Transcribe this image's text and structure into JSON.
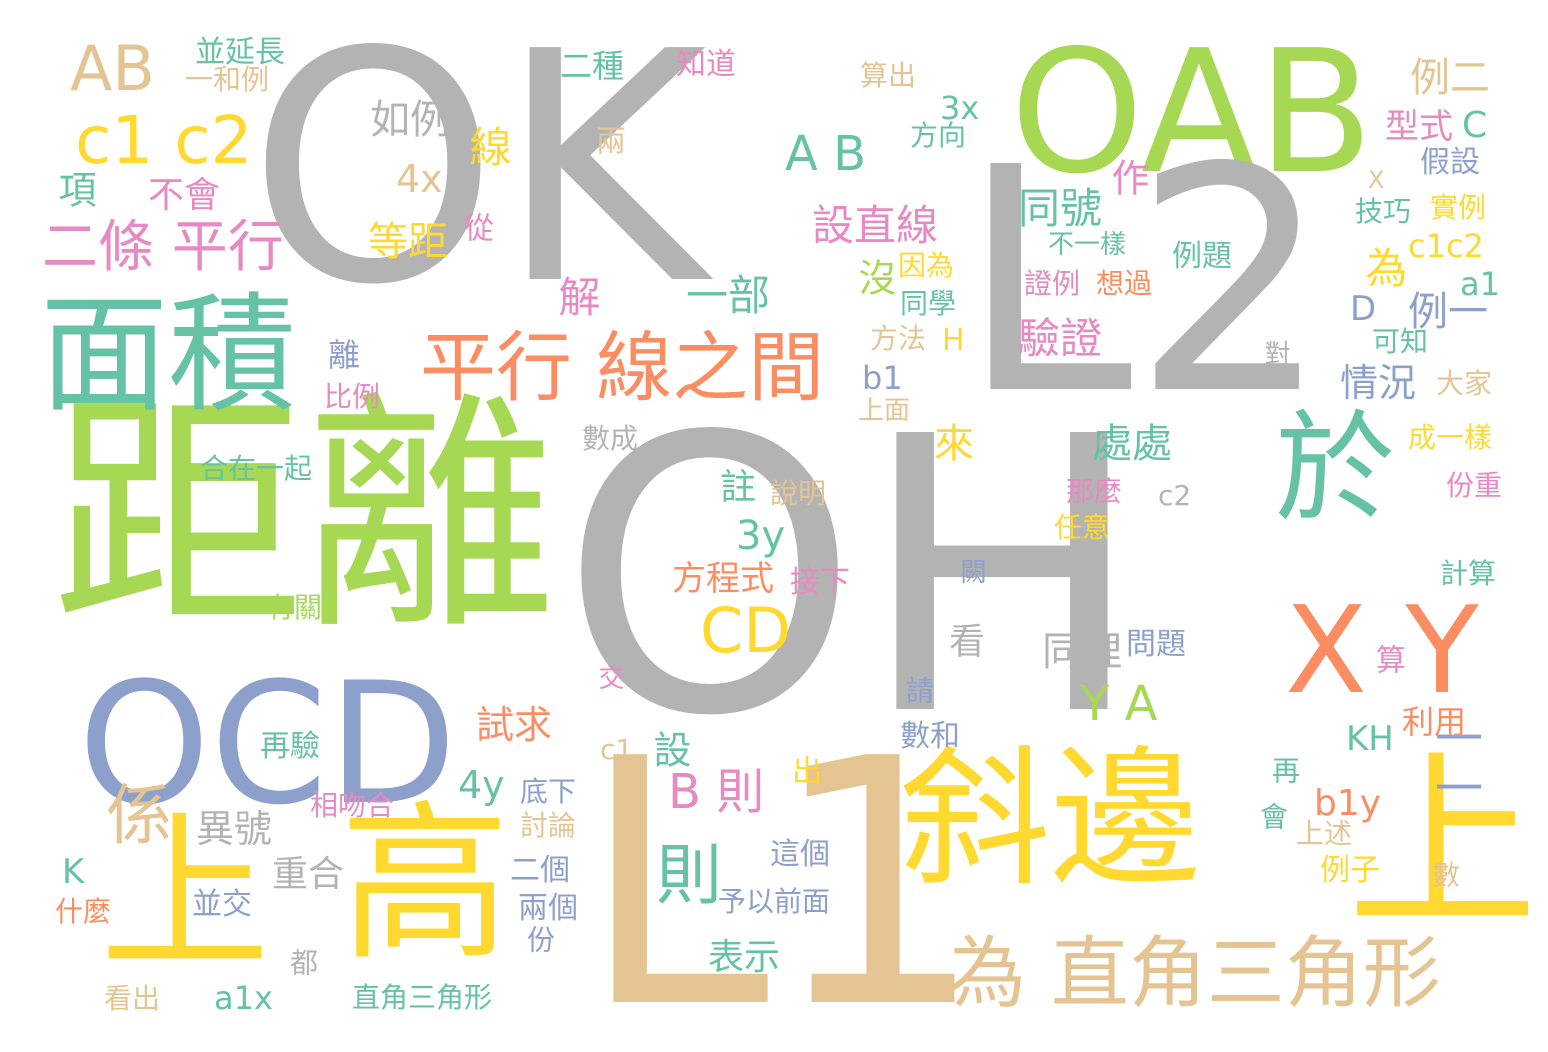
{
  "palette": {
    "gray": "#b3b3b3",
    "lime": "#a6d854",
    "yellow": "#ffd92f",
    "tan": "#e5c494",
    "orange": "#fc8d62",
    "teal": "#66c2a5",
    "blue": "#8da0cb",
    "pink": "#e78ac3"
  },
  "words": [
    {
      "text": "OK",
      "color": "gray"
    },
    {
      "text": "OAB",
      "color": "lime"
    },
    {
      "text": "L2",
      "color": "gray"
    },
    {
      "text": "OH",
      "color": "gray"
    },
    {
      "text": "距離",
      "color": "lime"
    },
    {
      "text": "面積",
      "color": "teal"
    },
    {
      "text": "OCD",
      "color": "blue"
    },
    {
      "text": "L1",
      "color": "tan"
    },
    {
      "text": "斜邊",
      "color": "yellow"
    },
    {
      "text": "於",
      "color": "teal"
    },
    {
      "text": "X Y",
      "color": "orange"
    },
    {
      "text": "上",
      "color": "yellow"
    },
    {
      "text": "高",
      "color": "yellow"
    },
    {
      "text": "上",
      "color": "yellow"
    },
    {
      "text": "AB",
      "color": "tan"
    },
    {
      "text": "c1 c2",
      "color": "yellow"
    },
    {
      "text": "二條 平行",
      "color": "pink"
    },
    {
      "text": "平行 線之間",
      "color": "orange"
    },
    {
      "text": "為 直角三角形",
      "color": "tan"
    },
    {
      "text": "CD",
      "color": "yellow"
    },
    {
      "text": "A B",
      "color": "teal"
    },
    {
      "text": "係",
      "color": "tan"
    },
    {
      "text": "則",
      "color": "teal"
    },
    {
      "text": "Y A",
      "color": "lime"
    },
    {
      "text": "B 則",
      "color": "pink"
    },
    {
      "text": "一",
      "color": "blue"
    },
    {
      "text": "一",
      "color": "blue"
    },
    {
      "text": "並延長",
      "color": "teal"
    },
    {
      "text": "一和例",
      "color": "tan"
    },
    {
      "text": "二種",
      "color": "teal"
    },
    {
      "text": "知道",
      "color": "pink"
    },
    {
      "text": "算出",
      "color": "tan"
    },
    {
      "text": "例二",
      "color": "tan"
    },
    {
      "text": "如例",
      "color": "gray"
    },
    {
      "text": "線",
      "color": "yellow"
    },
    {
      "text": "兩",
      "color": "tan"
    },
    {
      "text": "3x",
      "color": "teal"
    },
    {
      "text": "方向",
      "color": "teal"
    },
    {
      "text": "型式",
      "color": "pink"
    },
    {
      "text": "C",
      "color": "teal"
    },
    {
      "text": "假設",
      "color": "blue"
    },
    {
      "text": "項",
      "color": "teal"
    },
    {
      "text": "不會",
      "color": "pink"
    },
    {
      "text": "4x",
      "color": "tan"
    },
    {
      "text": "作",
      "color": "pink"
    },
    {
      "text": "同號",
      "color": "teal"
    },
    {
      "text": "X",
      "color": "tan"
    },
    {
      "text": "技巧",
      "color": "teal"
    },
    {
      "text": "實例",
      "color": "yellow"
    },
    {
      "text": "等距",
      "color": "yellow"
    },
    {
      "text": "從",
      "color": "pink"
    },
    {
      "text": "設直線",
      "color": "pink"
    },
    {
      "text": "不一樣",
      "color": "teal"
    },
    {
      "text": "例題",
      "color": "teal"
    },
    {
      "text": "c1c2",
      "color": "yellow"
    },
    {
      "text": "為",
      "color": "yellow"
    },
    {
      "text": "解",
      "color": "pink"
    },
    {
      "text": "一部",
      "color": "teal"
    },
    {
      "text": "沒",
      "color": "lime"
    },
    {
      "text": "因為",
      "color": "yellow"
    },
    {
      "text": "證例",
      "color": "pink"
    },
    {
      "text": "想過",
      "color": "orange"
    },
    {
      "text": "a1",
      "color": "teal"
    },
    {
      "text": "D",
      "color": "blue"
    },
    {
      "text": "例一",
      "color": "blue"
    },
    {
      "text": "同學",
      "color": "teal"
    },
    {
      "text": "驗證",
      "color": "pink"
    },
    {
      "text": "方法",
      "color": "tan"
    },
    {
      "text": "H",
      "color": "yellow"
    },
    {
      "text": "可知",
      "color": "teal"
    },
    {
      "text": "離",
      "color": "blue"
    },
    {
      "text": "比例",
      "color": "pink"
    },
    {
      "text": "b1",
      "color": "blue"
    },
    {
      "text": "對",
      "color": "gray"
    },
    {
      "text": "情況",
      "color": "blue"
    },
    {
      "text": "大家",
      "color": "tan"
    },
    {
      "text": "上面",
      "color": "tan"
    },
    {
      "text": "數成",
      "color": "gray"
    },
    {
      "text": "來",
      "color": "yellow"
    },
    {
      "text": "處處",
      "color": "teal"
    },
    {
      "text": "成一樣",
      "color": "yellow"
    },
    {
      "text": "合在一起",
      "color": "teal"
    },
    {
      "text": "份重",
      "color": "pink"
    },
    {
      "text": "那麼",
      "color": "pink"
    },
    {
      "text": "註",
      "color": "teal"
    },
    {
      "text": "說明",
      "color": "tan"
    },
    {
      "text": "c2",
      "color": "gray"
    },
    {
      "text": "任意",
      "color": "yellow"
    },
    {
      "text": "3y",
      "color": "teal"
    },
    {
      "text": "方程式",
      "color": "orange"
    },
    {
      "text": "闕",
      "color": "blue"
    },
    {
      "text": "計算",
      "color": "teal"
    },
    {
      "text": "接下",
      "color": "pink"
    },
    {
      "text": "有關",
      "color": "lime"
    },
    {
      "text": "看",
      "color": "gray"
    },
    {
      "text": "同理",
      "color": "gray"
    },
    {
      "text": "問題",
      "color": "blue"
    },
    {
      "text": "算",
      "color": "pink"
    },
    {
      "text": "交",
      "color": "pink"
    },
    {
      "text": "請",
      "color": "blue"
    },
    {
      "text": "試求",
      "color": "orange"
    },
    {
      "text": "再驗",
      "color": "teal"
    },
    {
      "text": "數和",
      "color": "blue"
    },
    {
      "text": "利用",
      "color": "orange"
    },
    {
      "text": "KH",
      "color": "teal"
    },
    {
      "text": "設",
      "color": "teal"
    },
    {
      "text": "c1",
      "color": "tan"
    },
    {
      "text": "出",
      "color": "yellow"
    },
    {
      "text": "再",
      "color": "teal"
    },
    {
      "text": "4y",
      "color": "teal"
    },
    {
      "text": "底下",
      "color": "blue"
    },
    {
      "text": "b1y",
      "color": "orange"
    },
    {
      "text": "相吻合",
      "color": "pink"
    },
    {
      "text": "異號",
      "color": "gray"
    },
    {
      "text": "討論",
      "color": "tan"
    },
    {
      "text": "會",
      "color": "teal"
    },
    {
      "text": "上述",
      "color": "tan"
    },
    {
      "text": "重合",
      "color": "gray"
    },
    {
      "text": "這個",
      "color": "blue"
    },
    {
      "text": "二個",
      "color": "blue"
    },
    {
      "text": "例子",
      "color": "yellow"
    },
    {
      "text": "K",
      "color": "teal"
    },
    {
      "text": "數",
      "color": "tan"
    },
    {
      "text": "什麼",
      "color": "orange"
    },
    {
      "text": "並交",
      "color": "blue"
    },
    {
      "text": "兩個",
      "color": "blue"
    },
    {
      "text": "予以前面",
      "color": "blue"
    },
    {
      "text": "表示",
      "color": "teal"
    },
    {
      "text": "份",
      "color": "blue"
    },
    {
      "text": "都",
      "color": "gray"
    },
    {
      "text": "看出",
      "color": "tan"
    },
    {
      "text": "a1x",
      "color": "teal"
    },
    {
      "text": "直角三角形",
      "color": "teal"
    }
  ]
}
